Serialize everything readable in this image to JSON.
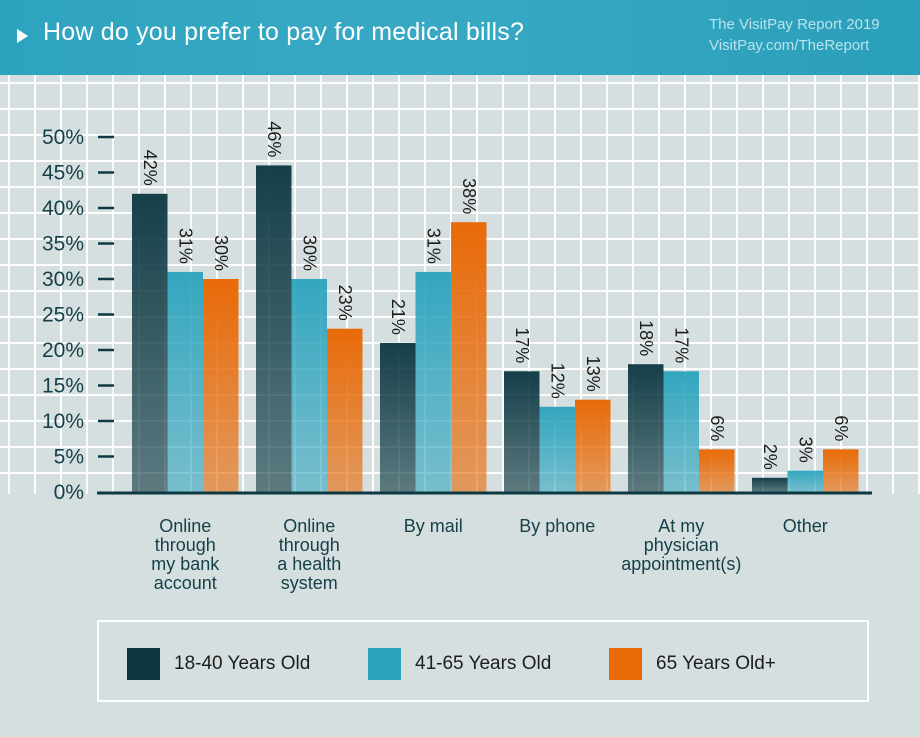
{
  "header": {
    "title": "How do you prefer to pay for medical bills?",
    "source_line1": "The VisitPay Report 2019",
    "source_line2": "VisitPay.com/TheReport"
  },
  "colors": {
    "header_bg": "#2ea3bf",
    "background": "#d6dfdf",
    "axis": "#0d3a42",
    "series": [
      "#0b3640",
      "#2ba3bd",
      "#e86a08"
    ]
  },
  "chart_data": {
    "type": "bar",
    "title": "How do you prefer to pay for medical bills?",
    "xlabel": "",
    "ylabel": "",
    "ylim": [
      0,
      50
    ],
    "yticks": [
      0,
      5,
      10,
      15,
      20,
      25,
      30,
      35,
      40,
      45,
      50
    ],
    "ytick_labels": [
      "0%",
      "5%",
      "10%",
      "15%",
      "20%",
      "25%",
      "30%",
      "35%",
      "40%",
      "45%",
      "50%"
    ],
    "grid": true,
    "legend_position": "bottom",
    "categories": [
      "Online through my bank account",
      "Online through a health system",
      "By mail",
      "By phone",
      "At my physician appointment(s)",
      "Other"
    ],
    "category_lines": [
      [
        "Online",
        "through",
        "my bank",
        "account"
      ],
      [
        "Online",
        "through",
        "a health",
        "system"
      ],
      [
        "By mail"
      ],
      [
        "By phone"
      ],
      [
        "At my",
        "physician",
        "appointment(s)"
      ],
      [
        "Other"
      ]
    ],
    "series": [
      {
        "name": "18-40 Years Old",
        "values": [
          42,
          46,
          21,
          17,
          18,
          2
        ],
        "labels": [
          "42%",
          "46%",
          "21%",
          "17%",
          "18%",
          "2%"
        ]
      },
      {
        "name": "41-65 Years Old",
        "values": [
          31,
          30,
          31,
          12,
          17,
          3
        ],
        "labels": [
          "31%",
          "30%",
          "31%",
          "12%",
          "17%",
          "3%"
        ]
      },
      {
        "name": "65 Years Old+",
        "values": [
          30,
          23,
          38,
          13,
          6,
          6
        ],
        "labels": [
          "30%",
          "23%",
          "38%",
          "13%",
          "6%",
          "6%"
        ]
      }
    ]
  },
  "legend": {
    "items": [
      {
        "label": "18-40 Years Old",
        "color": "#0b3640"
      },
      {
        "label": "41-65 Years Old",
        "color": "#2ba3bd"
      },
      {
        "label": "65 Years Old+",
        "color": "#e86a08"
      }
    ]
  }
}
